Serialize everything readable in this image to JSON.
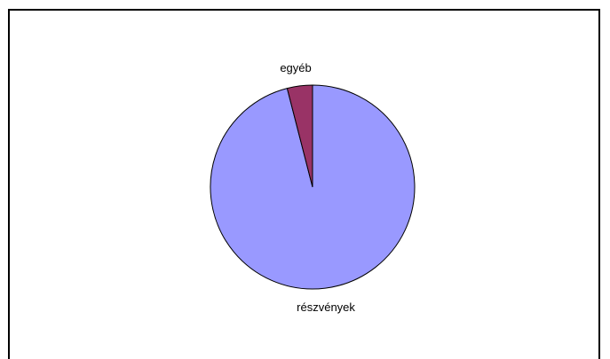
{
  "chart_data": {
    "type": "pie",
    "title": "",
    "categories": [
      "részvények",
      "egyéb"
    ],
    "values": [
      96,
      4
    ],
    "colors": [
      "#9999ff",
      "#993366"
    ],
    "legend": "none",
    "label_position": "outside"
  }
}
